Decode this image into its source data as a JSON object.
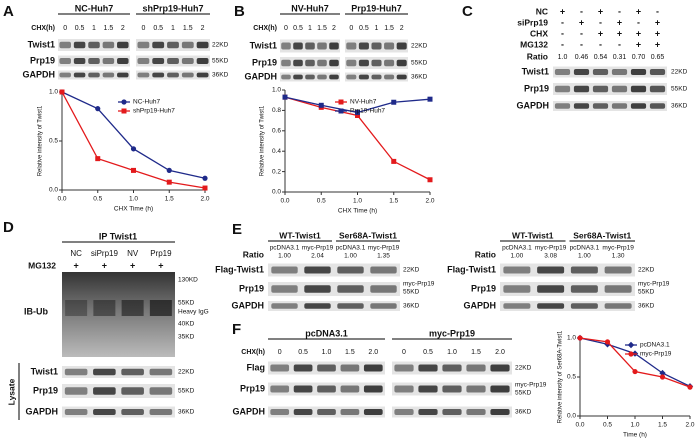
{
  "panels": {
    "A": {
      "label": "A",
      "groups": [
        "NC-Huh7",
        "shPrp19-Huh7"
      ],
      "chx_label": "CHX(h)",
      "lanes": [
        "0",
        "0.5",
        "1",
        "1.5",
        "2",
        "0",
        "0.5",
        "1",
        "1.5",
        "2"
      ],
      "rows": [
        "Twist1",
        "Prp19",
        "GAPDH"
      ],
      "markers": [
        "22KD",
        "55KD",
        "36KD"
      ]
    },
    "B": {
      "label": "B",
      "groups": [
        "NV-Huh7",
        "Prp19-Huh7"
      ],
      "chx_label": "CHX(h)",
      "lanes": [
        "0",
        "0.5",
        "1",
        "1.5",
        "2",
        "0",
        "0.5",
        "1",
        "1.5",
        "2"
      ],
      "rows": [
        "Twist1",
        "Prp19",
        "GAPDH"
      ],
      "markers": [
        "22KD",
        "55KD",
        "36KD"
      ]
    },
    "C": {
      "label": "C",
      "conditions": [
        {
          "name": "NC",
          "signs": [
            "+",
            "-",
            "+",
            "-",
            "+",
            "-"
          ]
        },
        {
          "name": "siPrp19",
          "signs": [
            "-",
            "+",
            "-",
            "+",
            "-",
            "+"
          ]
        },
        {
          "name": "CHX",
          "signs": [
            "-",
            "-",
            "+",
            "+",
            "+",
            "+"
          ]
        },
        {
          "name": "MG132",
          "signs": [
            "-",
            "-",
            "-",
            "-",
            "+",
            "+"
          ]
        }
      ],
      "ratio_label": "Ratio",
      "ratios": [
        "1.0",
        "0.46",
        "0.54",
        "0.31",
        "0.70",
        "0.65"
      ],
      "rows": [
        "Twist1",
        "Prp19",
        "GAPDH"
      ],
      "markers": [
        "22KD",
        "55KD",
        "36KD"
      ]
    },
    "D": {
      "label": "D",
      "header": "IP Twist1",
      "treatment": "MG132",
      "lanes": [
        "NC",
        "siPrp19",
        "NV",
        "Prp19"
      ],
      "signs": [
        "+",
        "+",
        "+",
        "+"
      ],
      "ib_label": "IB-Ub",
      "ib_markers": [
        "130KD",
        "55KD",
        "Heavy IgG",
        "40KD",
        "35KD"
      ],
      "lysate_label": "Lysate",
      "rows": [
        "Twist1",
        "Prp19",
        "GAPDH"
      ],
      "markers": [
        "22KD",
        "55KD",
        "36KD"
      ]
    },
    "E": {
      "label": "E",
      "blots": [
        {
          "groups": [
            "WT-Twist1",
            "Ser68A-Twist1"
          ],
          "ratio_label": "Ratio",
          "lanes": [
            "pcDNA3.1",
            "myc-Prp19",
            "pcDNA3.1",
            "myc-Prp19"
          ],
          "ratios": [
            "1.00",
            "2.04",
            "1.00",
            "1.35"
          ],
          "rows": [
            "Flag-Twist1",
            "Prp19",
            "GAPDH"
          ],
          "markers": [
            "22KD",
            "myc-Prp19",
            "55KD",
            "36KD"
          ]
        },
        {
          "groups": [
            "WT-Twist1",
            "Ser68A-Twist1"
          ],
          "ratio_label": "Ratio",
          "lanes": [
            "pcDNA3.1",
            "myc-Prp19",
            "pcDNA3.1",
            "myc-Prp19"
          ],
          "ratios": [
            "1.00",
            "3.08",
            "1.00",
            "1.30"
          ],
          "rows": [
            "Flag-Twist1",
            "Prp19",
            "GAPDH"
          ],
          "markers": [
            "22KD",
            "myc-Prp19",
            "55KD",
            "36KD"
          ]
        }
      ]
    },
    "F": {
      "label": "F",
      "groups": [
        "pcDNA3.1",
        "myc-Prp19"
      ],
      "chx_label": "CHX(h)",
      "lanes": [
        "0",
        "0.5",
        "1.0",
        "1.5",
        "2.0",
        "0",
        "0.5",
        "1.0",
        "1.5",
        "2.0"
      ],
      "rows": [
        "Flag",
        "Prp19",
        "GAPDH"
      ],
      "markers": [
        "22KD",
        "myc-Prp19",
        "55KD",
        "36KD"
      ]
    }
  },
  "chart_data": [
    {
      "type": "line",
      "x_label": "CHX Time (h)",
      "y_label": "Relative intensity of Twist1",
      "x": [
        0,
        0.5,
        1,
        1.5,
        2
      ],
      "xlim": [
        0,
        2
      ],
      "xticks": [
        {
          "value": 0,
          "label": "0.0"
        },
        0.5,
        {
          "value": 1,
          "label": "1.0"
        },
        1.5,
        {
          "value": 2,
          "label": "2.0"
        }
      ],
      "ylim": [
        0,
        1
      ],
      "yticks": [
        {
          "value": 0,
          "label": "0.0"
        },
        0.5,
        {
          "value": 1,
          "label": "1.0"
        }
      ],
      "series": [
        {
          "name": "NC-Huh7",
          "color": "#1f2a8a",
          "marker": "circle",
          "values": [
            1.0,
            0.83,
            0.42,
            0.2,
            0.12
          ]
        },
        {
          "name": "shPrp19-Huh7",
          "color": "#e31a1c",
          "marker": "square",
          "values": [
            1.0,
            0.32,
            0.2,
            0.08,
            0.02
          ]
        }
      ]
    },
    {
      "type": "line",
      "x_label": "CHX Time (h)",
      "y_label": "Relative intensity of Twist1",
      "x": [
        0,
        0.5,
        1,
        1.5,
        2
      ],
      "xlim": [
        0,
        2
      ],
      "xticks": [
        {
          "value": 0,
          "label": "0.0"
        },
        0.5,
        {
          "value": 1,
          "label": "1.0"
        },
        1.5,
        {
          "value": 2,
          "label": "2.0"
        }
      ],
      "ylim": [
        0,
        1
      ],
      "yticks": [
        {
          "value": 0,
          "label": "0.0"
        },
        0.2,
        0.4,
        0.6,
        0.8,
        {
          "value": 1,
          "label": "1.0"
        }
      ],
      "series": [
        {
          "name": "NV-Huh7",
          "color": "#e31a1c",
          "marker": "square",
          "values": [
            0.93,
            0.83,
            0.75,
            0.3,
            0.12
          ]
        },
        {
          "name": "Prp19-Huh7",
          "color": "#1f2a8a",
          "marker": "square",
          "values": [
            0.93,
            0.85,
            0.78,
            0.88,
            0.91
          ]
        }
      ]
    },
    {
      "type": "line",
      "x_label": "Time (h)",
      "y_label": "Relative intensity of Ser68A-Twist1",
      "x": [
        0,
        0.5,
        1,
        1.5,
        2
      ],
      "xlim": [
        0,
        2
      ],
      "xticks": [
        {
          "value": 0,
          "label": "0.0"
        },
        0.5,
        {
          "value": 1,
          "label": "1.0"
        },
        1.5,
        {
          "value": 2,
          "label": "2.0"
        }
      ],
      "ylim": [
        0,
        1
      ],
      "yticks": [
        {
          "value": 0,
          "label": "0.0"
        },
        0.5,
        {
          "value": 1,
          "label": "1.0"
        }
      ],
      "series": [
        {
          "name": "pcDNA3.1",
          "color": "#1f2a8a",
          "marker": "diamond",
          "values": [
            1.0,
            0.92,
            0.8,
            0.55,
            0.38
          ]
        },
        {
          "name": "myc-Prp19",
          "color": "#e31a1c",
          "marker": "circle",
          "values": [
            1.0,
            0.95,
            0.57,
            0.5,
            0.37
          ]
        }
      ]
    }
  ]
}
